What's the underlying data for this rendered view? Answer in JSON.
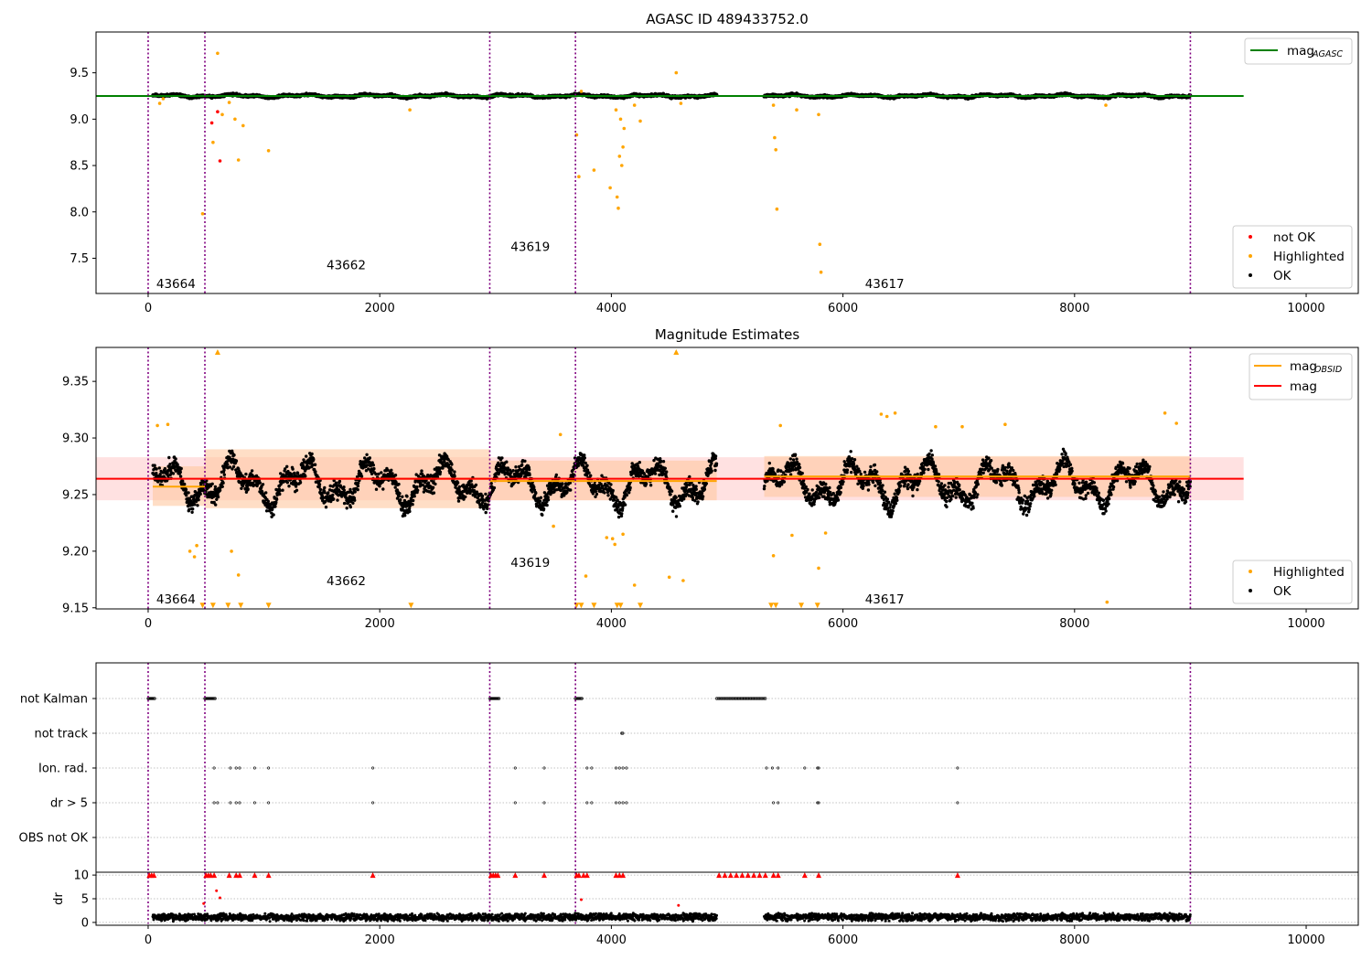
{
  "chart_data": [
    {
      "type": "scatter",
      "title": "AGASC ID 489433752.0",
      "xlim": [
        -450,
        10450
      ],
      "ylim": [
        7.12,
        9.94
      ],
      "xticks": [
        "0",
        "2000",
        "4000",
        "6000",
        "8000",
        "10000"
      ],
      "yticks": [
        "7.5",
        "8.0",
        "8.5",
        "9.0",
        "9.5"
      ],
      "legend_lines": [
        {
          "label": "mag",
          "subscript": "AGASC",
          "color": "#008000"
        }
      ],
      "legend_markers": [
        {
          "label": "not OK",
          "color": "#ff0000"
        },
        {
          "label": "Highlighted",
          "color": "#ffa500"
        },
        {
          "label": "OK",
          "color": "#000000"
        }
      ],
      "obsid_boundaries": [
        0,
        490,
        2950,
        3690,
        9000
      ],
      "obsid_labels": [
        {
          "text": "43664",
          "x": 240,
          "y": 7.23
        },
        {
          "text": "43662",
          "x": 1710,
          "y": 7.43
        },
        {
          "text": "43619",
          "x": 3300,
          "y": 7.63
        },
        {
          "text": "43617",
          "x": 6360,
          "y": 7.23
        }
      ],
      "agasc_mag": 9.25,
      "series": [
        {
          "name": "OK",
          "color": "#000000",
          "baseline": 9.25,
          "jitter": 0.02,
          "segments": [
            [
              40,
              490
            ],
            [
              490,
              2950
            ],
            [
              2950,
              3690
            ],
            [
              3690,
              4910
            ],
            [
              5320,
              9000
            ]
          ]
        },
        {
          "name": "Highlighted",
          "color": "#ffa500",
          "points": [
            [
              100,
              9.17
            ],
            [
              130,
              9.22
            ],
            [
              470,
              7.98
            ],
            [
              560,
              8.75
            ],
            [
              600,
              9.71
            ],
            [
              640,
              9.05
            ],
            [
              700,
              9.18
            ],
            [
              750,
              9.0
            ],
            [
              780,
              8.56
            ],
            [
              820,
              8.93
            ],
            [
              1040,
              8.66
            ],
            [
              2260,
              9.1
            ],
            [
              3700,
              8.83
            ],
            [
              3720,
              8.38
            ],
            [
              3740,
              9.3
            ],
            [
              3850,
              8.45
            ],
            [
              3990,
              8.26
            ],
            [
              4040,
              9.1
            ],
            [
              4050,
              8.16
            ],
            [
              4060,
              8.04
            ],
            [
              4070,
              8.6
            ],
            [
              4080,
              9.0
            ],
            [
              4090,
              8.5
            ],
            [
              4100,
              8.7
            ],
            [
              4110,
              8.9
            ],
            [
              4200,
              9.15
            ],
            [
              4250,
              8.98
            ],
            [
              4560,
              9.5
            ],
            [
              4600,
              9.17
            ],
            [
              5400,
              9.15
            ],
            [
              5410,
              8.8
            ],
            [
              5420,
              8.67
            ],
            [
              5430,
              8.03
            ],
            [
              5600,
              9.1
            ],
            [
              5790,
              9.05
            ],
            [
              5800,
              7.65
            ],
            [
              5810,
              7.35
            ],
            [
              8270,
              9.15
            ]
          ]
        },
        {
          "name": "not OK",
          "color": "#ff0000",
          "points": [
            [
              550,
              8.96
            ],
            [
              600,
              9.08
            ],
            [
              620,
              8.55
            ]
          ]
        }
      ]
    },
    {
      "type": "scatter",
      "title": "Magnitude Estimates",
      "xlim": [
        -450,
        10450
      ],
      "ylim": [
        9.149,
        9.38
      ],
      "xticks": [
        "0",
        "2000",
        "4000",
        "6000",
        "8000",
        "10000"
      ],
      "yticks": [
        "9.15",
        "9.20",
        "9.25",
        "9.30",
        "9.35"
      ],
      "legend_lines": [
        {
          "label": "mag",
          "subscript": "OBSID",
          "color": "#ffa500"
        },
        {
          "label": "mag",
          "subscript": "",
          "color": "#ff0000"
        }
      ],
      "legend_markers": [
        {
          "label": "Highlighted",
          "color": "#ffa500"
        },
        {
          "label": "OK",
          "color": "#000000"
        }
      ],
      "obsid_boundaries": [
        0,
        490,
        2950,
        3690,
        9000
      ],
      "obsid_labels": [
        {
          "text": "43664",
          "x": 240,
          "y": 9.158
        },
        {
          "text": "43662",
          "x": 1710,
          "y": 9.174
        },
        {
          "text": "43619",
          "x": 3300,
          "y": 9.19
        },
        {
          "text": "43617",
          "x": 6360,
          "y": 9.158
        }
      ],
      "mag": 9.264,
      "mag_band": [
        9.245,
        9.283
      ],
      "obsid_mags": [
        {
          "x0": 40,
          "x1": 490,
          "mag": 9.257,
          "band": [
            9.24,
            9.275
          ]
        },
        {
          "x0": 490,
          "x1": 2950,
          "mag": 9.264,
          "band": [
            9.238,
            9.29
          ]
        },
        {
          "x0": 2950,
          "x1": 3690,
          "mag": 9.262,
          "band": [
            9.245,
            9.28
          ]
        },
        {
          "x0": 3690,
          "x1": 4910,
          "mag": 9.262,
          "band": [
            9.245,
            9.28
          ]
        },
        {
          "x0": 5320,
          "x1": 9000,
          "mag": 9.266,
          "band": [
            9.248,
            9.284
          ]
        }
      ],
      "series": [
        {
          "name": "OK",
          "color": "#000000",
          "baseline": 9.26,
          "jitter": 0.018,
          "segments": [
            [
              40,
              490
            ],
            [
              490,
              2950
            ],
            [
              2950,
              3690
            ],
            [
              3690,
              4910
            ],
            [
              5320,
              9000
            ]
          ]
        },
        {
          "name": "Highlighted",
          "color": "#ffa500",
          "points": [
            [
              80,
              9.311
            ],
            [
              170,
              9.312
            ],
            [
              360,
              9.2
            ],
            [
              400,
              9.195
            ],
            [
              420,
              9.205
            ],
            [
              470,
              9.152
            ],
            [
              560,
              9.152
            ],
            [
              600,
              9.377
            ],
            [
              690,
              9.152
            ],
            [
              720,
              9.2
            ],
            [
              780,
              9.179
            ],
            [
              800,
              9.152
            ],
            [
              1040,
              9.152
            ],
            [
              2270,
              9.152
            ],
            [
              3500,
              9.222
            ],
            [
              3560,
              9.303
            ],
            [
              3700,
              9.152
            ],
            [
              3740,
              9.152
            ],
            [
              3780,
              9.178
            ],
            [
              3850,
              9.152
            ],
            [
              3960,
              9.212
            ],
            [
              4010,
              9.211
            ],
            [
              4030,
              9.206
            ],
            [
              4050,
              9.152
            ],
            [
              4080,
              9.152
            ],
            [
              4100,
              9.215
            ],
            [
              4200,
              9.17
            ],
            [
              4250,
              9.152
            ],
            [
              4500,
              9.177
            ],
            [
              4560,
              9.377
            ],
            [
              4620,
              9.174
            ],
            [
              5380,
              9.152
            ],
            [
              5400,
              9.196
            ],
            [
              5420,
              9.152
            ],
            [
              5460,
              9.311
            ],
            [
              5560,
              9.214
            ],
            [
              5640,
              9.152
            ],
            [
              5780,
              9.152
            ],
            [
              5790,
              9.185
            ],
            [
              5850,
              9.216
            ],
            [
              6330,
              9.321
            ],
            [
              6380,
              9.319
            ],
            [
              6450,
              9.322
            ],
            [
              6800,
              9.31
            ],
            [
              7030,
              9.31
            ],
            [
              7400,
              9.312
            ],
            [
              8280,
              9.155
            ],
            [
              8780,
              9.322
            ],
            [
              8880,
              9.313
            ]
          ]
        }
      ]
    },
    {
      "type": "scatter",
      "title": "",
      "xlim": [
        -450,
        10450
      ],
      "xticks": [
        "0",
        "2000",
        "4000",
        "6000",
        "8000",
        "10000"
      ],
      "categories": [
        "not Kalman",
        "not track",
        "Ion. rad.",
        "dr > 5",
        "OBS not OK"
      ],
      "obsid_boundaries": [
        0,
        490,
        2950,
        3690,
        9000
      ],
      "flags": [
        {
          "category": "not Kalman",
          "x_ranges": [
            [
              0,
              60
            ],
            [
              490,
              580
            ],
            [
              2950,
              3030
            ],
            [
              3690,
              3750
            ],
            [
              4910,
              5340
            ]
          ]
        },
        {
          "category": "not track",
          "x_ranges": [
            [
              4090,
              4100
            ]
          ]
        },
        {
          "category": "Ion. rad.",
          "x": [
            570,
            710,
            760,
            790,
            920,
            1040,
            1940,
            3170,
            3420,
            3790,
            3830,
            4040,
            4070,
            4100,
            4130,
            5340,
            5390,
            5440,
            5670,
            5780,
            5790,
            6990
          ]
        },
        {
          "category": "dr > 5",
          "x": [
            570,
            600,
            710,
            760,
            790,
            920,
            1040,
            1940,
            3170,
            3420,
            3790,
            3830,
            4040,
            4070,
            4100,
            4130,
            5400,
            5440,
            5780,
            5790,
            6990
          ]
        },
        {
          "category": "OBS not OK",
          "x": []
        }
      ]
    },
    {
      "type": "scatter",
      "title": "",
      "ylabel": "dr",
      "xlim": [
        -450,
        10450
      ],
      "ylim": [
        -0.6,
        10.6
      ],
      "xticks": [
        "0",
        "2000",
        "4000",
        "6000",
        "8000",
        "10000"
      ],
      "yticks": [
        "0",
        "5",
        "10"
      ],
      "obsid_boundaries": [
        0,
        490,
        2950,
        3690,
        9000
      ],
      "series": [
        {
          "name": "dr",
          "color": "#000000",
          "baseline": 1.1,
          "jitter": 0.9,
          "segments": [
            [
              40,
              490
            ],
            [
              490,
              2950
            ],
            [
              2950,
              3690
            ],
            [
              3690,
              4910
            ],
            [
              5320,
              9000
            ]
          ]
        },
        {
          "name": "dr > 5",
          "color": "#ff0000",
          "clipped_at": 10,
          "points": [
            [
              10,
              10
            ],
            [
              30,
              10
            ],
            [
              50,
              10
            ],
            [
              480,
              4
            ],
            [
              500,
              10
            ],
            [
              520,
              10
            ],
            [
              540,
              10
            ],
            [
              570,
              10
            ],
            [
              590,
              6.7
            ],
            [
              620,
              5.2
            ],
            [
              700,
              10
            ],
            [
              760,
              10
            ],
            [
              790,
              10
            ],
            [
              920,
              10
            ],
            [
              1040,
              10
            ],
            [
              1940,
              10
            ],
            [
              2960,
              10
            ],
            [
              2980,
              10
            ],
            [
              3000,
              10
            ],
            [
              3020,
              10
            ],
            [
              3170,
              10
            ],
            [
              3420,
              10
            ],
            [
              3700,
              10
            ],
            [
              3720,
              10
            ],
            [
              3740,
              4.8
            ],
            [
              3760,
              10
            ],
            [
              3790,
              10
            ],
            [
              4040,
              10
            ],
            [
              4070,
              10
            ],
            [
              4100,
              10
            ],
            [
              4580,
              3.6
            ],
            [
              4930,
              10
            ],
            [
              4980,
              10
            ],
            [
              5030,
              10
            ],
            [
              5080,
              10
            ],
            [
              5130,
              10
            ],
            [
              5180,
              10
            ],
            [
              5230,
              10
            ],
            [
              5280,
              10
            ],
            [
              5330,
              10
            ],
            [
              5400,
              10
            ],
            [
              5440,
              10
            ],
            [
              5670,
              10
            ],
            [
              5790,
              10
            ],
            [
              6990,
              10
            ]
          ]
        }
      ]
    }
  ],
  "colors": {
    "obsid_boundary": "#800080",
    "ok": "#000000",
    "highlighted": "#ffa500",
    "not_ok": "#ff0000",
    "agasc_line": "#008000",
    "mag_line": "#ff0000",
    "mag_band": "#ffc8c8",
    "obsid_band": "#ffc8a0"
  }
}
